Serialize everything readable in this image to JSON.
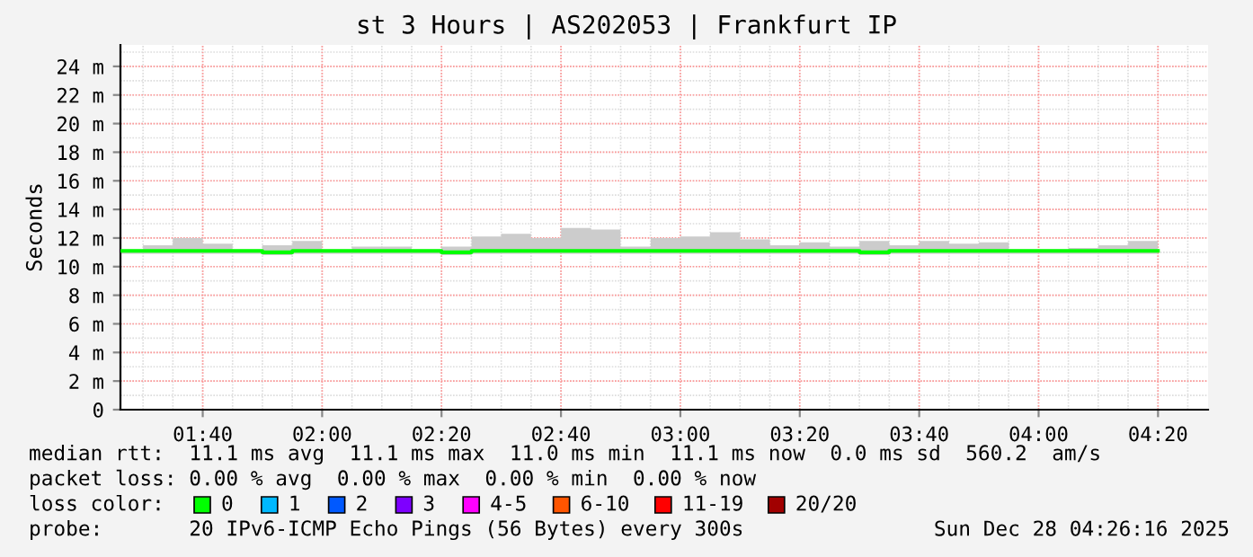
{
  "chart_data": {
    "type": "step",
    "title": "st 3 Hours | AS202053 | Frankfurt IP",
    "ylabel": "Seconds",
    "legend_title": "loss color:",
    "x": [
      1.44,
      1.5,
      1.583,
      1.667,
      1.75,
      1.833,
      1.917,
      2.0,
      2.083,
      2.167,
      2.25,
      2.333,
      2.417,
      2.5,
      2.583,
      2.667,
      2.75,
      2.833,
      2.917,
      3.0,
      3.083,
      3.167,
      3.25,
      3.333,
      3.417,
      3.5,
      3.583,
      3.667,
      3.75,
      3.833,
      3.917,
      4.0,
      4.083,
      4.167,
      4.25,
      4.333
    ],
    "xlim": [
      1.437,
      4.473
    ],
    "xticks": [
      {
        "value": 1.6667,
        "label": "01:40"
      },
      {
        "value": 2.0,
        "label": "02:00"
      },
      {
        "value": 2.3333,
        "label": "02:20"
      },
      {
        "value": 2.6667,
        "label": "02:40"
      },
      {
        "value": 3.0,
        "label": "03:00"
      },
      {
        "value": 3.3333,
        "label": "03:20"
      },
      {
        "value": 3.6667,
        "label": "03:40"
      },
      {
        "value": 4.0,
        "label": "04:00"
      },
      {
        "value": 4.3333,
        "label": "04:20"
      }
    ],
    "ylim": [
      0,
      25.5
    ],
    "yticks": [
      {
        "value": 0,
        "label": "0"
      },
      {
        "value": 2,
        "label": "2 m"
      },
      {
        "value": 4,
        "label": "4 m"
      },
      {
        "value": 6,
        "label": "6 m"
      },
      {
        "value": 8,
        "label": "8 m"
      },
      {
        "value": 10,
        "label": "10 m"
      },
      {
        "value": 12,
        "label": "12 m"
      },
      {
        "value": 14,
        "label": "14 m"
      },
      {
        "value": 16,
        "label": "16 m"
      },
      {
        "value": 18,
        "label": "18 m"
      },
      {
        "value": 20,
        "label": "20 m"
      },
      {
        "value": 22,
        "label": "22 m"
      },
      {
        "value": 24,
        "label": "24 m"
      }
    ],
    "grid": true,
    "legend": "bottom",
    "series": [
      {
        "name": "0",
        "color": "#00ff00",
        "values": [
          11.1,
          11.1,
          11.1,
          11.1,
          11.1,
          11.0,
          11.1,
          11.1,
          11.1,
          11.1,
          11.1,
          11.0,
          11.1,
          11.1,
          11.1,
          11.1,
          11.1,
          11.1,
          11.1,
          11.1,
          11.1,
          11.1,
          11.1,
          11.1,
          11.1,
          11.0,
          11.1,
          11.1,
          11.1,
          11.1,
          11.1,
          11.1,
          11.1,
          11.1,
          11.1,
          11.1
        ],
        "lower": [
          10.9,
          10.9,
          10.9,
          10.9,
          10.9,
          10.8,
          10.9,
          10.9,
          10.9,
          10.9,
          10.9,
          10.8,
          10.9,
          10.9,
          10.9,
          10.9,
          10.9,
          10.9,
          10.9,
          10.9,
          10.9,
          10.9,
          10.9,
          10.9,
          10.9,
          10.8,
          10.9,
          10.9,
          10.9,
          10.9,
          10.9,
          10.9,
          10.9,
          10.9,
          10.9,
          10.9
        ],
        "upper": [
          11.2,
          11.5,
          12.0,
          11.6,
          11.2,
          11.5,
          11.8,
          11.2,
          11.4,
          11.4,
          11.2,
          11.4,
          12.1,
          12.3,
          12.0,
          12.7,
          12.6,
          11.4,
          12.0,
          12.1,
          12.4,
          11.9,
          11.5,
          11.7,
          11.4,
          11.8,
          11.5,
          11.8,
          11.6,
          11.7,
          11.2,
          11.2,
          11.3,
          11.5,
          11.8,
          11.8
        ]
      },
      {
        "name": "1",
        "color": "#00b8ff",
        "values": [
          null,
          null,
          null,
          null,
          null,
          null,
          null,
          null,
          null,
          null,
          null,
          null,
          null,
          null,
          null,
          null,
          null,
          null,
          null,
          null,
          null,
          null,
          null,
          null,
          null,
          null,
          null,
          null,
          null,
          null,
          null,
          null,
          null,
          null,
          null,
          null
        ]
      },
      {
        "name": "2",
        "color": "#0059ff",
        "values": [
          null,
          null,
          null,
          null,
          null,
          null,
          null,
          null,
          null,
          null,
          null,
          null,
          null,
          null,
          null,
          null,
          null,
          null,
          null,
          null,
          null,
          null,
          null,
          null,
          null,
          null,
          null,
          null,
          null,
          null,
          null,
          null,
          null,
          null,
          null,
          null
        ]
      },
      {
        "name": "3",
        "color": "#7e00ff",
        "values": [
          null,
          null,
          null,
          null,
          null,
          null,
          null,
          null,
          null,
          null,
          null,
          null,
          null,
          null,
          null,
          null,
          null,
          null,
          null,
          null,
          null,
          null,
          null,
          null,
          null,
          null,
          null,
          null,
          null,
          null,
          null,
          null,
          null,
          null,
          null,
          null
        ]
      },
      {
        "name": "4-5",
        "color": "#ff00ff",
        "values": [
          null,
          null,
          null,
          null,
          null,
          null,
          null,
          null,
          null,
          null,
          null,
          null,
          null,
          null,
          null,
          null,
          null,
          null,
          null,
          null,
          null,
          null,
          null,
          null,
          null,
          null,
          null,
          null,
          null,
          null,
          null,
          null,
          null,
          null,
          null,
          null
        ]
      },
      {
        "name": "6-10",
        "color": "#ff5500",
        "values": [
          null,
          null,
          null,
          null,
          null,
          null,
          null,
          null,
          null,
          null,
          null,
          null,
          null,
          null,
          null,
          null,
          null,
          null,
          null,
          null,
          null,
          null,
          null,
          null,
          null,
          null,
          null,
          null,
          null,
          null,
          null,
          null,
          null,
          null,
          null,
          null
        ]
      },
      {
        "name": "11-19",
        "color": "#ff0000",
        "values": [
          null,
          null,
          null,
          null,
          null,
          null,
          null,
          null,
          null,
          null,
          null,
          null,
          null,
          null,
          null,
          null,
          null,
          null,
          null,
          null,
          null,
          null,
          null,
          null,
          null,
          null,
          null,
          null,
          null,
          null,
          null,
          null,
          null,
          null,
          null,
          null
        ]
      },
      {
        "name": "20/20",
        "color": "#a10000",
        "values": [
          null,
          null,
          null,
          null,
          null,
          null,
          null,
          null,
          null,
          null,
          null,
          null,
          null,
          null,
          null,
          null,
          null,
          null,
          null,
          null,
          null,
          null,
          null,
          null,
          null,
          null,
          null,
          null,
          null,
          null,
          null,
          null,
          null,
          null,
          null,
          null
        ]
      }
    ],
    "annotations": [
      "median rtt:  11.1 ms avg  11.1 ms max  11.0 ms min  11.1 ms now  0.0 ms sd  560.2  am/s",
      "packet loss: 0.00 % avg  0.00 % max  0.00 % min  0.00 % now",
      "probe:       20 IPv6-ICMP Echo Pings (56 Bytes) every 300s",
      "Sun Dec 28 04:26:16 2025"
    ]
  }
}
